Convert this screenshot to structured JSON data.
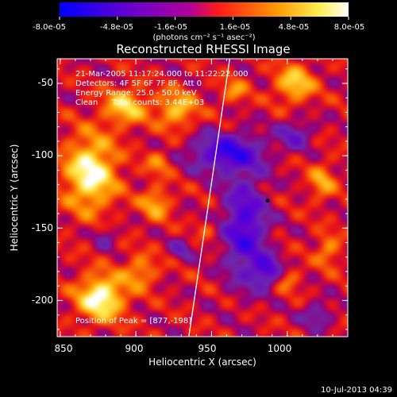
{
  "chart_data": {
    "type": "heatmap",
    "title": "Reconstructed RHESSI Image",
    "xlabel": "Heliocentric X (arcsec)",
    "ylabel": "Heliocentric Y (arcsec)",
    "xlim": [
      848,
      1040
    ],
    "ylim": [
      -225,
      -33
    ],
    "x_ticks": [
      850,
      900,
      950,
      1000
    ],
    "y_ticks": [
      -50,
      -100,
      -150,
      -200
    ],
    "colorbar": {
      "range": [
        -8e-05,
        8e-05
      ],
      "tick_labels": [
        "-8.0e-05",
        "-4.8e-05",
        "-1.6e-05",
        "1.6e-05",
        "4.8e-05",
        "8.0e-05"
      ],
      "unit_label": "(photons cm⁻² s⁻¹ asec⁻²)"
    },
    "annotations": {
      "time_range": "21-Mar-2005 11:17:24.000 to 11:22:22.000",
      "detectors": "Detectors: 4F 5F 6F 7F 8F, Att 0",
      "energy_range": "Energy Range: 25.0 - 50.0 keV",
      "clean": "Clean",
      "total_counts": "Total counts: 3.44E+03",
      "peak": "Position of Peak = [877,-198]"
    },
    "peak": {
      "x": 877,
      "y": -198
    },
    "marker": {
      "x": 987,
      "y": -131
    },
    "limb_line": [
      [
        962,
        -33
      ],
      [
        948,
        -133
      ],
      [
        935,
        -225
      ]
    ],
    "blobs": [
      {
        "x": 877,
        "y": -198,
        "amp": 1.0,
        "sx": 11,
        "sy": 11
      },
      {
        "x": 870,
        "y": -112,
        "amp": 0.95,
        "sx": 12,
        "sy": 18
      },
      {
        "x": 893,
        "y": -66,
        "amp": 0.7,
        "sx": 10,
        "sy": 9
      },
      {
        "x": 927,
        "y": -68,
        "amp": 0.65,
        "sx": 9,
        "sy": 9
      },
      {
        "x": 1005,
        "y": -50,
        "amp": 0.7,
        "sx": 9,
        "sy": 9
      },
      {
        "x": 913,
        "y": -133,
        "amp": 0.55,
        "sx": 7,
        "sy": 8
      },
      {
        "x": 903,
        "y": -180,
        "amp": 0.5,
        "sx": 8,
        "sy": 8
      },
      {
        "x": 965,
        "y": -55,
        "amp": 0.45,
        "sx": 6,
        "sy": 6
      },
      {
        "x": 1023,
        "y": -118,
        "amp": 0.5,
        "sx": 6,
        "sy": 9
      },
      {
        "x": 1027,
        "y": -165,
        "amp": 0.45,
        "sx": 6,
        "sy": 8
      },
      {
        "x": 1000,
        "y": -185,
        "amp": 0.4,
        "sx": 6,
        "sy": 6
      },
      {
        "x": 915,
        "y": -105,
        "amp": 0.4,
        "sx": 6,
        "sy": 6
      },
      {
        "x": 947,
        "y": -150,
        "amp": 0.25,
        "sx": 5,
        "sy": 5
      },
      {
        "x": 960,
        "y": -98,
        "amp": -0.9,
        "sx": 16,
        "sy": 9
      },
      {
        "x": 972,
        "y": -150,
        "amp": -0.85,
        "sx": 10,
        "sy": 25
      },
      {
        "x": 987,
        "y": -180,
        "amp": -0.75,
        "sx": 7,
        "sy": 7
      },
      {
        "x": 1005,
        "y": -85,
        "amp": -0.5,
        "sx": 8,
        "sy": 7
      },
      {
        "x": 930,
        "y": -165,
        "amp": -0.4,
        "sx": 5,
        "sy": 5
      },
      {
        "x": 1020,
        "y": -210,
        "amp": -0.45,
        "sx": 7,
        "sy": 6
      },
      {
        "x": 880,
        "y": -155,
        "amp": -0.35,
        "sx": 5,
        "sy": 6
      }
    ]
  },
  "footer": {
    "date": "10-Jul-2013 04:39"
  }
}
